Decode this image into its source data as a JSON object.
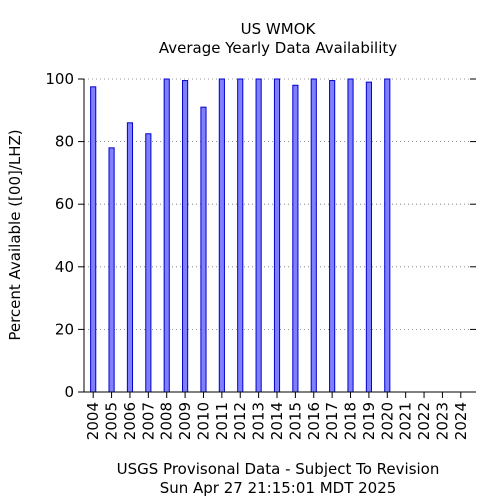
{
  "chart_data": {
    "type": "bar",
    "title": "US WMOK",
    "subtitle": "Average Yearly Data Availability",
    "ylabel": "Percent Available ([00]/LHZ)",
    "xlabel": "",
    "ylim": [
      0,
      100
    ],
    "yticks": [
      0,
      20,
      40,
      60,
      80,
      100
    ],
    "grid": true,
    "categories": [
      "2004",
      "2005",
      "2006",
      "2007",
      "2008",
      "2009",
      "2010",
      "2011",
      "2012",
      "2013",
      "2014",
      "2015",
      "2016",
      "2017",
      "2018",
      "2019",
      "2020",
      "2021",
      "2022",
      "2023",
      "2024"
    ],
    "values": [
      97.5,
      78,
      86,
      82.5,
      100,
      99.5,
      91,
      100,
      100,
      100,
      100,
      98,
      100,
      99.5,
      100,
      99,
      100,
      null,
      null,
      null,
      null
    ],
    "bar_color": "#8080ff",
    "bar_edge_color": "#0000cc"
  },
  "footer": {
    "line1": "USGS Provisonal Data - Subject To Revision",
    "line2": "Sun Apr 27 21:15:01 MDT 2025"
  }
}
